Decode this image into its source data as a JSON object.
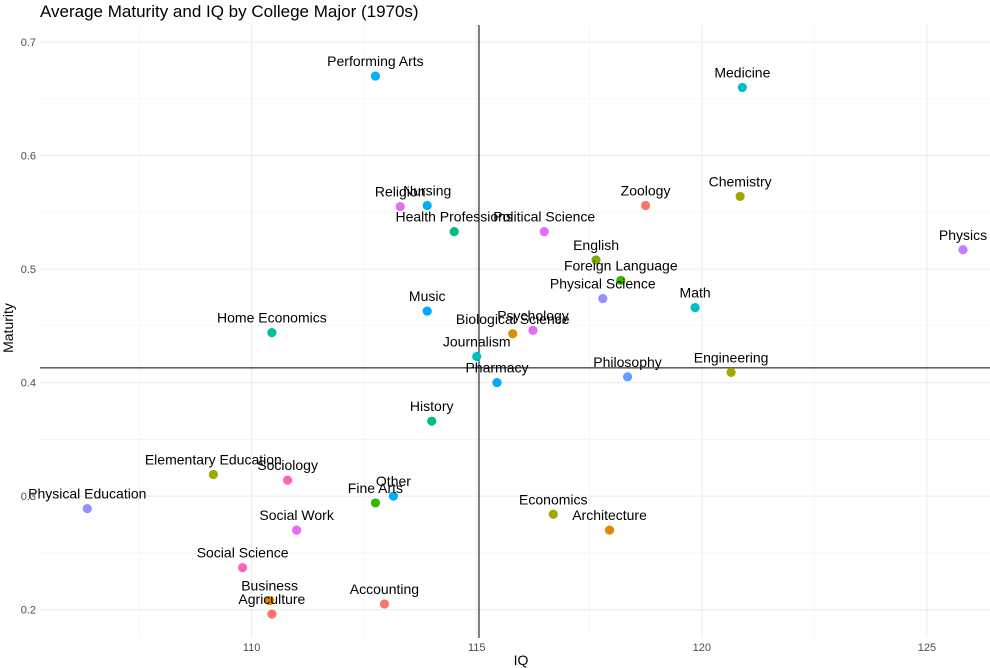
{
  "chart_data": {
    "type": "scatter",
    "title": "Average Maturity and IQ by College Major (1970s)",
    "xlabel": "IQ",
    "ylabel": "Maturity",
    "xlim": [
      105.3,
      126.4
    ],
    "ylim": [
      0.175,
      0.715
    ],
    "xticks": [
      110,
      115,
      120,
      125
    ],
    "yticks": [
      0.2,
      0.3,
      0.4,
      0.5,
      0.6,
      0.7
    ],
    "xticks_minor": [
      107.5,
      112.5,
      117.5,
      122.5
    ],
    "yticks_minor": [
      0.25,
      0.35,
      0.45,
      0.55,
      0.65
    ],
    "ytick_labels": [
      "0.2",
      "0.3",
      "0.4",
      "0.5",
      "0.6",
      "0.7"
    ],
    "xtick_labels": [
      "110",
      "115",
      "120",
      "125"
    ],
    "reference_lines": {
      "x": 115.05,
      "y": 0.413
    },
    "grid": true,
    "legend": "none",
    "points": [
      {
        "label": "Performing Arts",
        "x": 112.75,
        "y": 0.67,
        "color": "#00B0F6"
      },
      {
        "label": "Medicine",
        "x": 120.9,
        "y": 0.66,
        "color": "#00BFC4"
      },
      {
        "label": "Religion",
        "x": 113.3,
        "y": 0.555,
        "color": "#E76BF3"
      },
      {
        "label": "Nursing",
        "x": 113.9,
        "y": 0.556,
        "color": "#00B0F6"
      },
      {
        "label": "Zoology",
        "x": 118.75,
        "y": 0.556,
        "color": "#F8766D"
      },
      {
        "label": "Chemistry",
        "x": 120.85,
        "y": 0.564,
        "color": "#A3A500"
      },
      {
        "label": "Health Professions",
        "x": 114.5,
        "y": 0.533,
        "color": "#00BF7D"
      },
      {
        "label": "Political Science",
        "x": 116.5,
        "y": 0.533,
        "color": "#E76BF3"
      },
      {
        "label": "Physics",
        "x": 125.8,
        "y": 0.517,
        "color": "#C77CFF"
      },
      {
        "label": "English",
        "x": 117.65,
        "y": 0.508,
        "color": "#7CAE00"
      },
      {
        "label": "Foreign Language",
        "x": 118.2,
        "y": 0.49,
        "color": "#39B600"
      },
      {
        "label": "Physical Science",
        "x": 117.8,
        "y": 0.474,
        "color": "#9590FF"
      },
      {
        "label": "Math",
        "x": 119.85,
        "y": 0.466,
        "color": "#00BFC4"
      },
      {
        "label": "Music",
        "x": 113.9,
        "y": 0.463,
        "color": "#00A9FF"
      },
      {
        "label": "Home Economics",
        "x": 110.45,
        "y": 0.444,
        "color": "#00C19A"
      },
      {
        "label": "Biological Science",
        "x": 115.8,
        "y": 0.443,
        "color": "#D89000"
      },
      {
        "label": "Psychology",
        "x": 116.25,
        "y": 0.446,
        "color": "#E76BF3"
      },
      {
        "label": "Journalism",
        "x": 115.0,
        "y": 0.423,
        "color": "#00BFC4"
      },
      {
        "label": "Pharmacy",
        "x": 115.45,
        "y": 0.4,
        "color": "#00A9FF"
      },
      {
        "label": "Philosophy",
        "x": 118.35,
        "y": 0.405,
        "color": "#619CFF"
      },
      {
        "label": "Engineering",
        "x": 120.65,
        "y": 0.409,
        "color": "#A3A500"
      },
      {
        "label": "History",
        "x": 114.0,
        "y": 0.366,
        "color": "#00BF7D"
      },
      {
        "label": "Elementary Education",
        "x": 109.15,
        "y": 0.319,
        "color": "#A3A500"
      },
      {
        "label": "Sociology",
        "x": 110.8,
        "y": 0.314,
        "color": "#FF62BC"
      },
      {
        "label": "Physical Education",
        "x": 106.35,
        "y": 0.289,
        "color": "#9590FF"
      },
      {
        "label": "Other",
        "x": 113.15,
        "y": 0.3,
        "color": "#00B0F6"
      },
      {
        "label": "Fine Arts",
        "x": 112.75,
        "y": 0.294,
        "color": "#39B600"
      },
      {
        "label": "Economics",
        "x": 116.7,
        "y": 0.284,
        "color": "#A3A500"
      },
      {
        "label": "Architecture",
        "x": 117.95,
        "y": 0.27,
        "color": "#E58700"
      },
      {
        "label": "Social Work",
        "x": 111.0,
        "y": 0.27,
        "color": "#E76BF3"
      },
      {
        "label": "Social Science",
        "x": 109.8,
        "y": 0.237,
        "color": "#FF61C3"
      },
      {
        "label": "Business",
        "x": 110.4,
        "y": 0.208,
        "color": "#E58700"
      },
      {
        "label": "Agriculture",
        "x": 110.45,
        "y": 0.196,
        "color": "#F8766D"
      },
      {
        "label": "Accounting",
        "x": 112.95,
        "y": 0.205,
        "color": "#F8766D"
      }
    ]
  }
}
